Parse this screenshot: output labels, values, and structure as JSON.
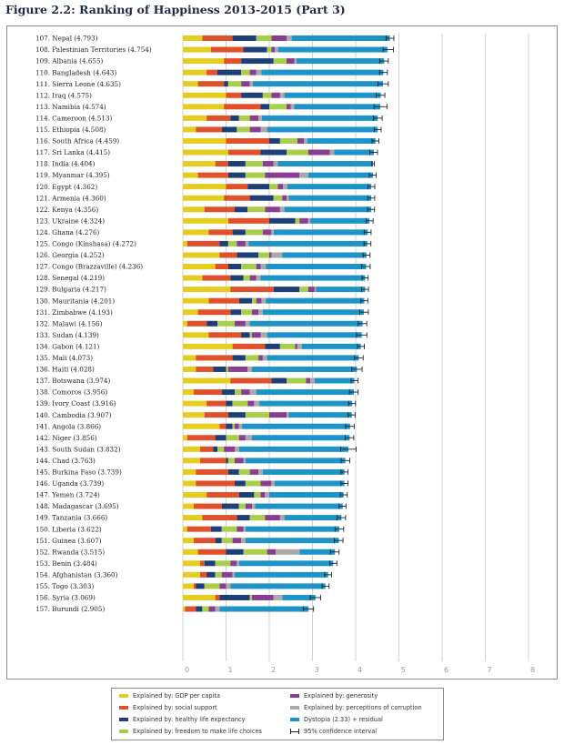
{
  "title": "Figure 2.2: Ranking of Happiness 2013-2015 (Part 3)",
  "colors": {
    "gdp": "#e5cd1f",
    "social": "#e0502a",
    "health": "#1c3f77",
    "freedom": "#a9cf4a",
    "generosity": "#8a3e92",
    "corruption": "#a9a9a9",
    "dystopia": "#1d93c8"
  },
  "legend": [
    {
      "key": "gdp",
      "label": "Explained by: GDP per capita"
    },
    {
      "key": "social",
      "label": "Explained by: social support"
    },
    {
      "key": "health",
      "label": "Explained by: healthy life expectancy"
    },
    {
      "key": "freedom",
      "label": "Explained by: freedom to make life choices"
    },
    {
      "key": "generosity",
      "label": "Explained by: generosity"
    },
    {
      "key": "corruption",
      "label": "Explained by: perceptions of corruption"
    },
    {
      "key": "dystopia",
      "label": "Dystopia (2.33) + residual"
    },
    {
      "key": "ci",
      "label": "95% confidence interval"
    }
  ],
  "chart_data": {
    "type": "bar",
    "orientation": "horizontal",
    "stacked": true,
    "xlim": [
      0,
      8
    ],
    "xticks": [
      "0",
      "1",
      "2",
      "3",
      "4",
      "5",
      "6",
      "7",
      "8"
    ],
    "grid": true,
    "series_names": [
      "Explained by: GDP per capita",
      "Explained by: social support",
      "Explained by: healthy life expectancy",
      "Explained by: freedom to make life choices",
      "Explained by: generosity",
      "Explained by: perceptions of corruption",
      "Dystopia (2.33) + residual"
    ],
    "rows": [
      {
        "label": "107. Nepal (4.793)",
        "score": 4.793,
        "parts": [
          0.45,
          0.7,
          0.55,
          0.35,
          0.35,
          0.12,
          2.27
        ],
        "ci": 0.09
      },
      {
        "label": "108. Palestinian Territories (4.754)",
        "score": 4.754,
        "parts": [
          0.65,
          0.75,
          0.55,
          0.1,
          0.08,
          0.08,
          2.53
        ],
        "ci": 0.12
      },
      {
        "label": "109. Albania (4.655)",
        "score": 4.655,
        "parts": [
          0.95,
          0.4,
          0.75,
          0.3,
          0.18,
          0.05,
          2.03
        ],
        "ci": 0.1
      },
      {
        "label": "110. Bangladesh (4.643)",
        "score": 4.643,
        "parts": [
          0.55,
          0.25,
          0.55,
          0.2,
          0.15,
          0.12,
          2.82
        ],
        "ci": 0.09
      },
      {
        "label": "111. Sierra Leone (4.635)",
        "score": 4.635,
        "parts": [
          0.35,
          0.6,
          0.1,
          0.3,
          0.2,
          0.07,
          3.01
        ],
        "ci": 0.12
      },
      {
        "label": "112. Iraq (4.575)",
        "score": 4.575,
        "parts": [
          1.0,
          0.35,
          0.5,
          0.2,
          0.2,
          0.1,
          2.23
        ],
        "ci": 0.1
      },
      {
        "label": "113. Namibia (4.574)",
        "score": 4.574,
        "parts": [
          0.95,
          0.85,
          0.2,
          0.4,
          0.1,
          0.08,
          1.99
        ],
        "ci": 0.15
      },
      {
        "label": "114. Cameroon (4.513)",
        "score": 4.513,
        "parts": [
          0.55,
          0.55,
          0.2,
          0.25,
          0.2,
          0.08,
          2.68
        ],
        "ci": 0.1
      },
      {
        "label": "115. Ethiopia (4.508)",
        "score": 4.508,
        "parts": [
          0.3,
          0.6,
          0.35,
          0.3,
          0.25,
          0.15,
          2.56
        ],
        "ci": 0.08
      },
      {
        "label": "116. South Africa (4.459)",
        "score": 4.459,
        "parts": [
          1.0,
          1.0,
          0.25,
          0.4,
          0.15,
          0.08,
          1.58
        ],
        "ci": 0.08
      },
      {
        "label": "117. Sri Lanka (4.415)",
        "score": 4.415,
        "parts": [
          1.05,
          0.75,
          0.6,
          0.5,
          0.5,
          0.1,
          0.92
        ],
        "ci": 0.09
      },
      {
        "label": "118. India (4.404)",
        "score": 4.404,
        "parts": [
          0.75,
          0.3,
          0.4,
          0.4,
          0.25,
          0.1,
          2.2
        ],
        "ci": 0.03
      },
      {
        "label": "119. Myanmar (4.395)",
        "score": 4.395,
        "parts": [
          0.35,
          0.7,
          0.4,
          0.45,
          0.8,
          0.2,
          1.5
        ],
        "ci": 0.08
      },
      {
        "label": "120. Egypt (4.362)",
        "score": 4.362,
        "parts": [
          1.0,
          0.5,
          0.5,
          0.2,
          0.12,
          0.1,
          1.94
        ],
        "ci": 0.08
      },
      {
        "label": "121. Armenia (4.360)",
        "score": 4.36,
        "parts": [
          0.95,
          0.6,
          0.55,
          0.2,
          0.1,
          0.05,
          1.91
        ],
        "ci": 0.08
      },
      {
        "label": "122. Kenya (4.356)",
        "score": 4.356,
        "parts": [
          0.5,
          0.7,
          0.3,
          0.4,
          0.35,
          0.1,
          2.01
        ],
        "ci": 0.08
      },
      {
        "label": "123. Ukraine (4.324)",
        "score": 4.324,
        "parts": [
          1.05,
          0.95,
          0.6,
          0.1,
          0.2,
          0.05,
          1.37
        ],
        "ci": 0.08
      },
      {
        "label": "124. Ghana (4.276)",
        "score": 4.276,
        "parts": [
          0.6,
          0.55,
          0.3,
          0.4,
          0.2,
          0.05,
          2.18
        ],
        "ci": 0.08
      },
      {
        "label": "125. Congo (Kinshasa) (4.272)",
        "score": 4.272,
        "parts": [
          0.1,
          0.75,
          0.2,
          0.2,
          0.2,
          0.07,
          2.75
        ],
        "ci": 0.08
      },
      {
        "label": "126. Georgia (4.252)",
        "score": 4.252,
        "parts": [
          0.85,
          0.4,
          0.5,
          0.25,
          0.05,
          0.25,
          1.95
        ],
        "ci": 0.08
      },
      {
        "label": "127. Congo (Brazzaville) (4.236)",
        "score": 4.236,
        "parts": [
          0.75,
          0.3,
          0.3,
          0.35,
          0.1,
          0.12,
          2.32
        ],
        "ci": 0.1
      },
      {
        "label": "128. Senegal (4.219)",
        "score": 4.219,
        "parts": [
          0.45,
          0.65,
          0.3,
          0.15,
          0.15,
          0.1,
          2.42
        ],
        "ci": 0.07
      },
      {
        "label": "129. Bulgaria (4.217)",
        "score": 4.217,
        "parts": [
          1.1,
          1.0,
          0.6,
          0.2,
          0.15,
          0.03,
          1.14
        ],
        "ci": 0.08
      },
      {
        "label": "130. Mauritania (4.201)",
        "score": 4.201,
        "parts": [
          0.6,
          0.7,
          0.3,
          0.1,
          0.12,
          0.1,
          2.28
        ],
        "ci": 0.08
      },
      {
        "label": "131. Zimbabwe (4.193)",
        "score": 4.193,
        "parts": [
          0.35,
          0.75,
          0.25,
          0.25,
          0.15,
          0.1,
          2.34
        ],
        "ci": 0.1
      },
      {
        "label": "132. Malawi (4.156)",
        "score": 4.156,
        "parts": [
          0.1,
          0.45,
          0.25,
          0.4,
          0.25,
          0.1,
          2.61
        ],
        "ci": 0.1
      },
      {
        "label": "133. Sudan (4.139)",
        "score": 4.139,
        "parts": [
          0.6,
          0.75,
          0.2,
          0.05,
          0.2,
          0.15,
          2.19
        ],
        "ci": 0.12
      },
      {
        "label": "134. Gabon (4.121)",
        "score": 4.121,
        "parts": [
          1.15,
          0.75,
          0.35,
          0.35,
          0.05,
          0.1,
          1.37
        ],
        "ci": 0.08
      },
      {
        "label": "135. Mali (4.073)",
        "score": 4.073,
        "parts": [
          0.3,
          0.85,
          0.3,
          0.3,
          0.1,
          0.1,
          2.12
        ],
        "ci": 0.1
      },
      {
        "label": "136. Haiti (4.028)",
        "score": 4.028,
        "parts": [
          0.3,
          0.4,
          0.3,
          0.05,
          0.45,
          0.1,
          2.43
        ],
        "ci": 0.12
      },
      {
        "label": "137. Botswana (3.974)",
        "score": 3.974,
        "parts": [
          1.1,
          0.95,
          0.35,
          0.45,
          0.1,
          0.1,
          0.92
        ],
        "ci": 0.08
      },
      {
        "label": "138. Comoros (3.956)",
        "score": 3.956,
        "parts": [
          0.25,
          0.65,
          0.3,
          0.15,
          0.2,
          0.15,
          2.26
        ],
        "ci": 0.1
      },
      {
        "label": "139. Ivory Coast (3.916)",
        "score": 3.916,
        "parts": [
          0.55,
          0.45,
          0.15,
          0.35,
          0.15,
          0.12,
          2.15
        ],
        "ci": 0.08
      },
      {
        "label": "140. Cambodia (3.907)",
        "score": 3.907,
        "parts": [
          0.5,
          0.55,
          0.4,
          0.55,
          0.4,
          0.05,
          1.46
        ],
        "ci": 0.08
      },
      {
        "label": "141. Angola (3.866)",
        "score": 3.866,
        "parts": [
          0.85,
          0.15,
          0.15,
          0.05,
          0.1,
          0.07,
          2.5
        ],
        "ci": 0.1
      },
      {
        "label": "142. Niger (3.856)",
        "score": 3.856,
        "parts": [
          0.1,
          0.65,
          0.25,
          0.3,
          0.15,
          0.15,
          2.26
        ],
        "ci": 0.1
      },
      {
        "label": "143. South Sudan (3.832)",
        "score": 3.832,
        "parts": [
          0.4,
          0.3,
          0.1,
          0.15,
          0.25,
          0.1,
          2.53
        ],
        "ci": 0.18
      },
      {
        "label": "144. Chad (3.763)",
        "score": 3.763,
        "parts": [
          0.4,
          0.6,
          0.05,
          0.15,
          0.2,
          0.05,
          2.31
        ],
        "ci": 0.1
      },
      {
        "label": "145. Burkina Faso (3.739)",
        "score": 3.739,
        "parts": [
          0.3,
          0.75,
          0.25,
          0.25,
          0.2,
          0.1,
          1.89
        ],
        "ci": 0.08
      },
      {
        "label": "146. Uganda (3.739)",
        "score": 3.739,
        "parts": [
          0.3,
          0.9,
          0.25,
          0.35,
          0.25,
          0.07,
          1.62
        ],
        "ci": 0.08
      },
      {
        "label": "147. Yemen (3.724)",
        "score": 3.724,
        "parts": [
          0.55,
          0.75,
          0.35,
          0.15,
          0.1,
          0.1,
          1.72
        ],
        "ci": 0.08
      },
      {
        "label": "148. Madagascar (3.695)",
        "score": 3.695,
        "parts": [
          0.25,
          0.65,
          0.4,
          0.15,
          0.15,
          0.07,
          2.03
        ],
        "ci": 0.08
      },
      {
        "label": "149. Tanzania (3.666)",
        "score": 3.666,
        "parts": [
          0.45,
          0.8,
          0.3,
          0.35,
          0.35,
          0.1,
          1.32
        ],
        "ci": 0.1
      },
      {
        "label": "150. Liberia (3.622)",
        "score": 3.622,
        "parts": [
          0.1,
          0.55,
          0.25,
          0.35,
          0.15,
          0.05,
          2.17
        ],
        "ci": 0.1
      },
      {
        "label": "151. Guinea (3.607)",
        "score": 3.607,
        "parts": [
          0.25,
          0.5,
          0.15,
          0.25,
          0.2,
          0.1,
          2.16
        ],
        "ci": 0.1
      },
      {
        "label": "152. Rwanda (3.515)",
        "score": 3.515,
        "parts": [
          0.35,
          0.65,
          0.4,
          0.55,
          0.2,
          0.55,
          0.82
        ],
        "ci": 0.1
      },
      {
        "label": "153. Benin (3.484)",
        "score": 3.484,
        "parts": [
          0.4,
          0.1,
          0.25,
          0.35,
          0.15,
          0.05,
          2.18
        ],
        "ci": 0.08
      },
      {
        "label": "154. Afghanistan (3.360)",
        "score": 3.36,
        "parts": [
          0.4,
          0.15,
          0.2,
          0.15,
          0.25,
          0.05,
          2.16
        ],
        "ci": 0.08
      },
      {
        "label": "155. Togo (3.303)",
        "score": 3.303,
        "parts": [
          0.25,
          0.05,
          0.2,
          0.35,
          0.15,
          0.1,
          2.2
        ],
        "ci": 0.08
      },
      {
        "label": "156. Syria (3.069)",
        "score": 3.069,
        "parts": [
          0.75,
          0.1,
          0.7,
          0.05,
          0.5,
          0.2,
          0.77
        ],
        "ci": 0.12
      },
      {
        "label": "157. Burundi (2.905)",
        "score": 2.905,
        "parts": [
          0.05,
          0.25,
          0.15,
          0.15,
          0.15,
          0.1,
          2.06
        ],
        "ci": 0.12
      }
    ]
  }
}
